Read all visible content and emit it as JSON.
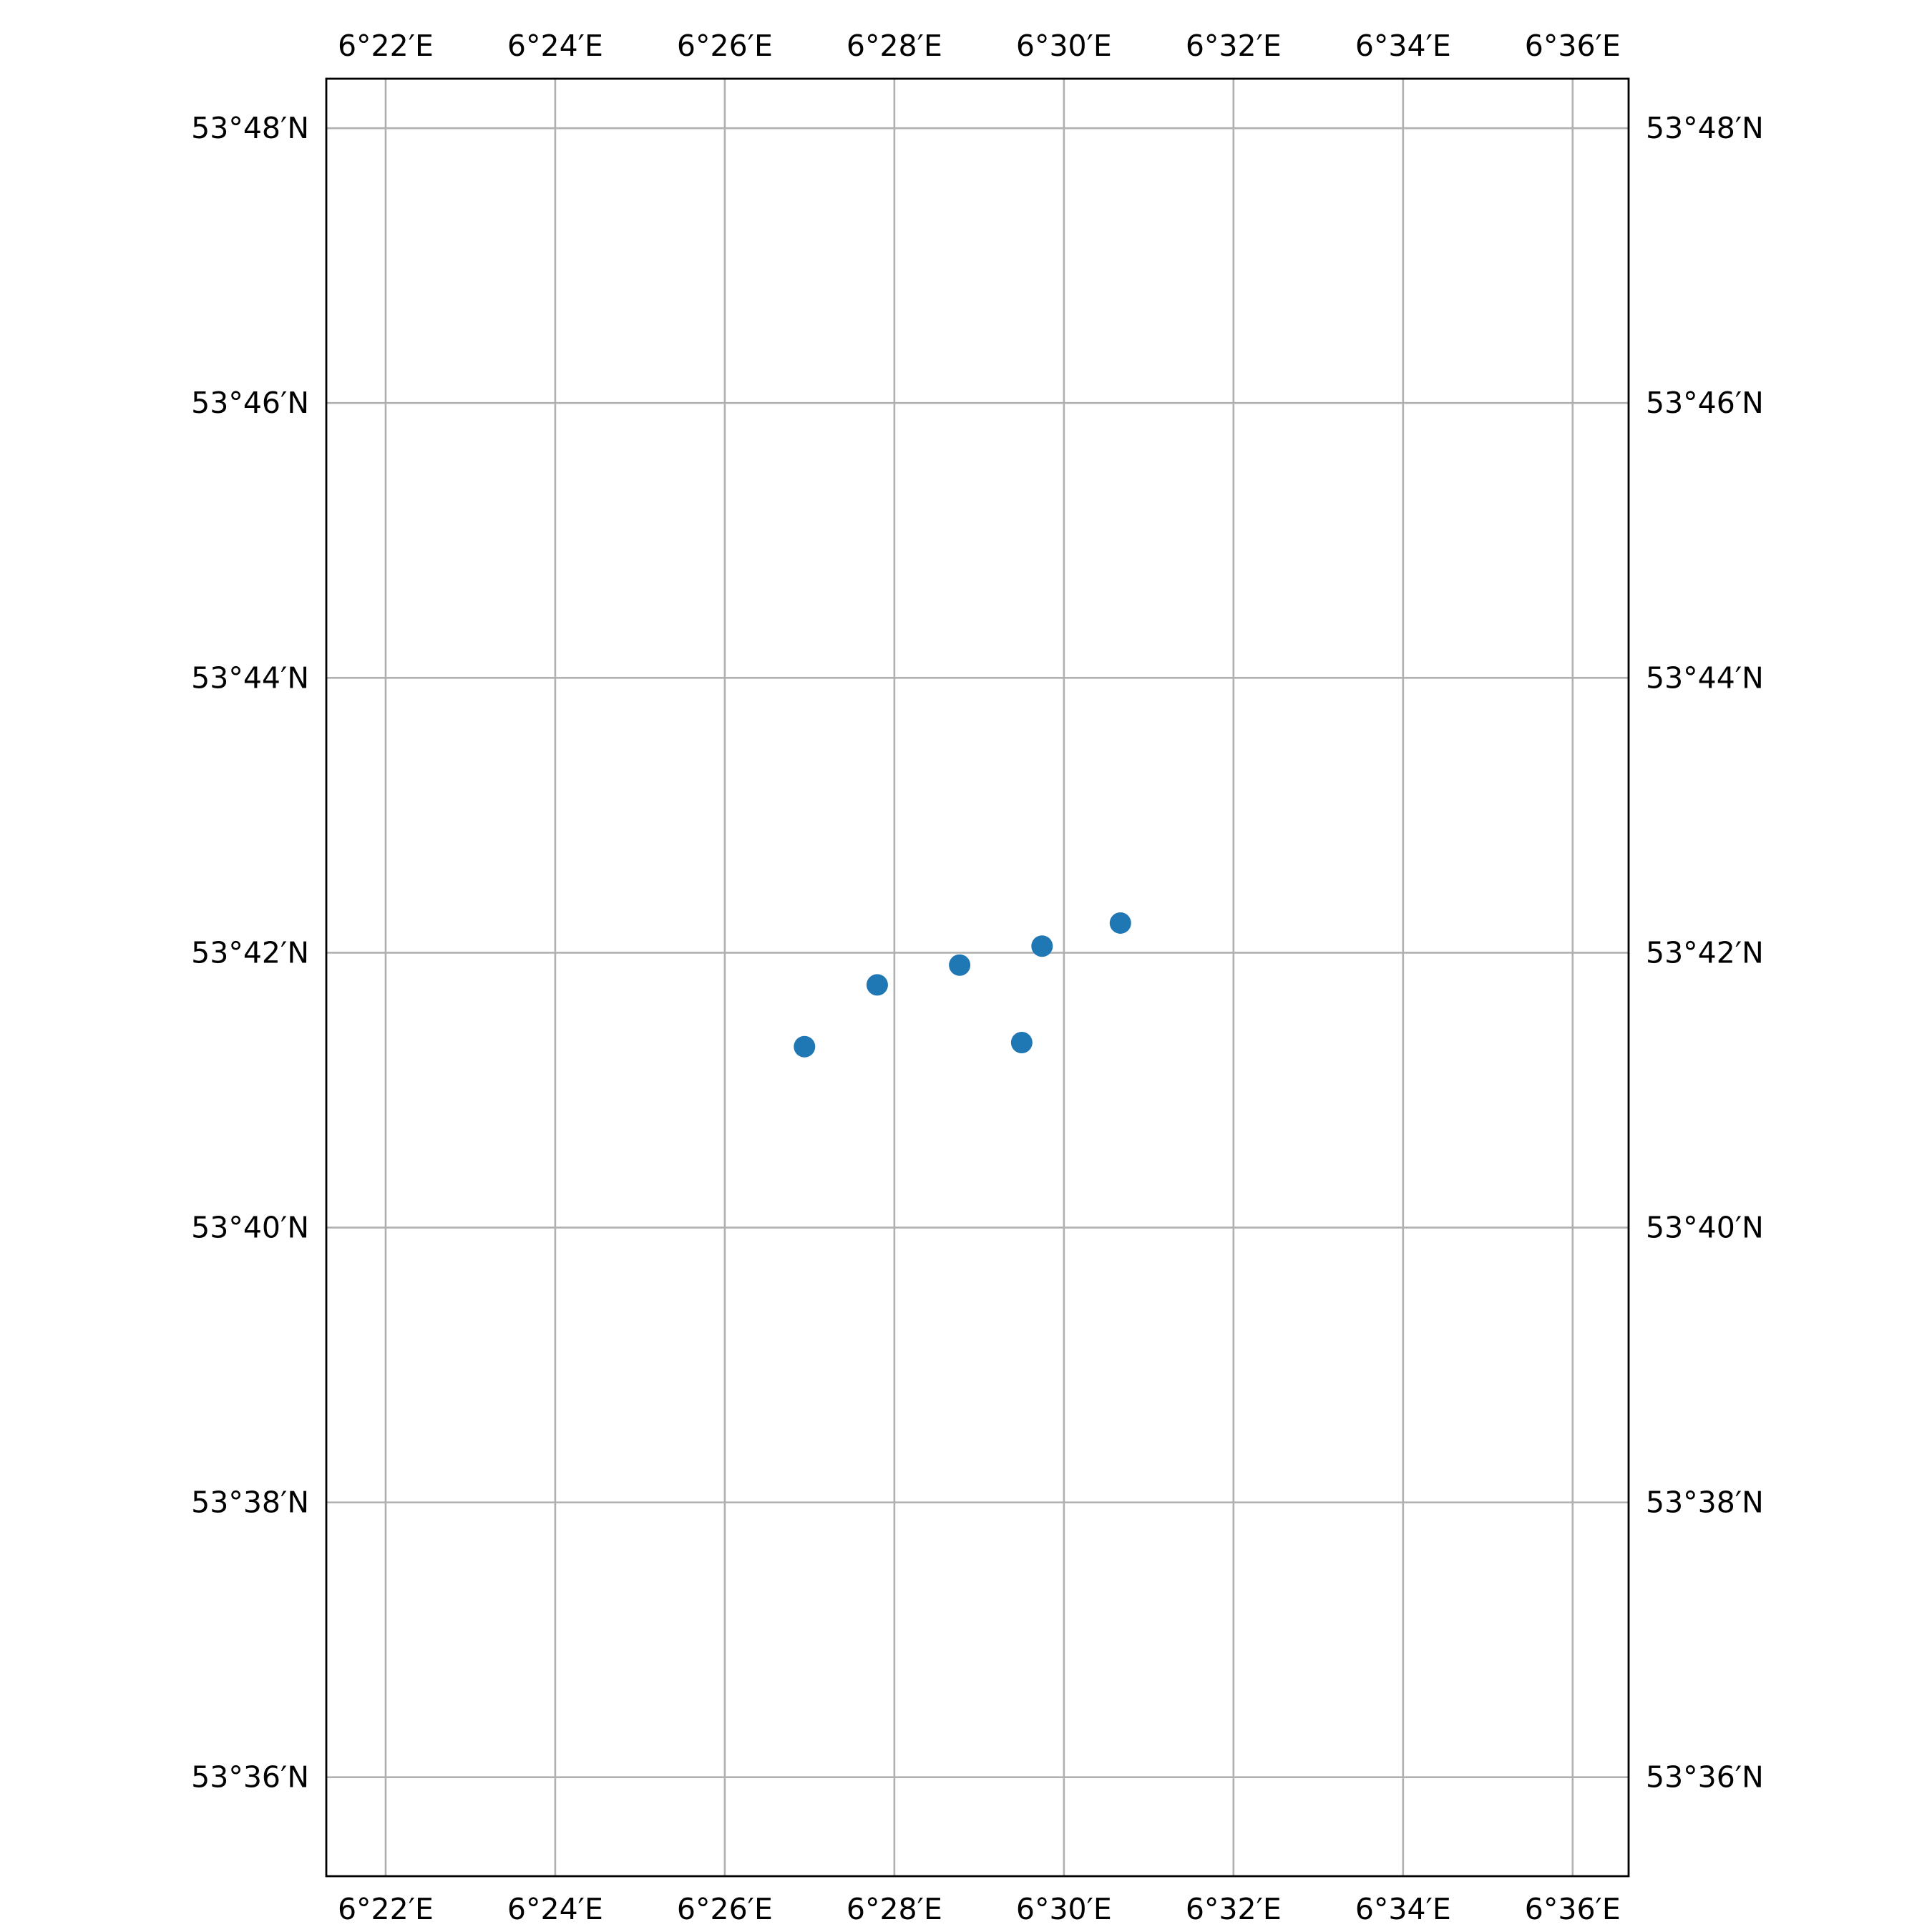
{
  "map": {
    "type": "scatter",
    "projection": "plate-carree",
    "extent": {
      "lon_min": 6.355,
      "lon_max": 6.611,
      "lat_min": 53.588,
      "lat_max": 53.806
    },
    "grid": true,
    "colors": {
      "point": "#1f77b4",
      "grid": "#b0b0b0",
      "frame": "#000000"
    },
    "lon_ticks": [
      {
        "value": 6.366667,
        "label": "6°22′E"
      },
      {
        "value": 6.4,
        "label": "6°24′E"
      },
      {
        "value": 6.433333,
        "label": "6°26′E"
      },
      {
        "value": 6.466667,
        "label": "6°28′E"
      },
      {
        "value": 6.5,
        "label": "6°30′E"
      },
      {
        "value": 6.533333,
        "label": "6°32′E"
      },
      {
        "value": 6.566667,
        "label": "6°34′E"
      },
      {
        "value": 6.6,
        "label": "6°36′E"
      }
    ],
    "lat_ticks": [
      {
        "value": 53.8,
        "label": "53°48′N"
      },
      {
        "value": 53.766667,
        "label": "53°46′N"
      },
      {
        "value": 53.733333,
        "label": "53°44′N"
      },
      {
        "value": 53.7,
        "label": "53°42′N"
      },
      {
        "value": 53.666667,
        "label": "53°40′N"
      },
      {
        "value": 53.633333,
        "label": "53°38′N"
      },
      {
        "value": 53.6,
        "label": "53°36′N"
      }
    ],
    "points": [
      {
        "lon": 6.449,
        "lat": 53.6886
      },
      {
        "lon": 6.4633,
        "lat": 53.6961
      },
      {
        "lon": 6.4795,
        "lat": 53.6985
      },
      {
        "lon": 6.4957,
        "lat": 53.7008
      },
      {
        "lon": 6.5111,
        "lat": 53.7036
      },
      {
        "lon": 6.4917,
        "lat": 53.6891
      }
    ]
  }
}
